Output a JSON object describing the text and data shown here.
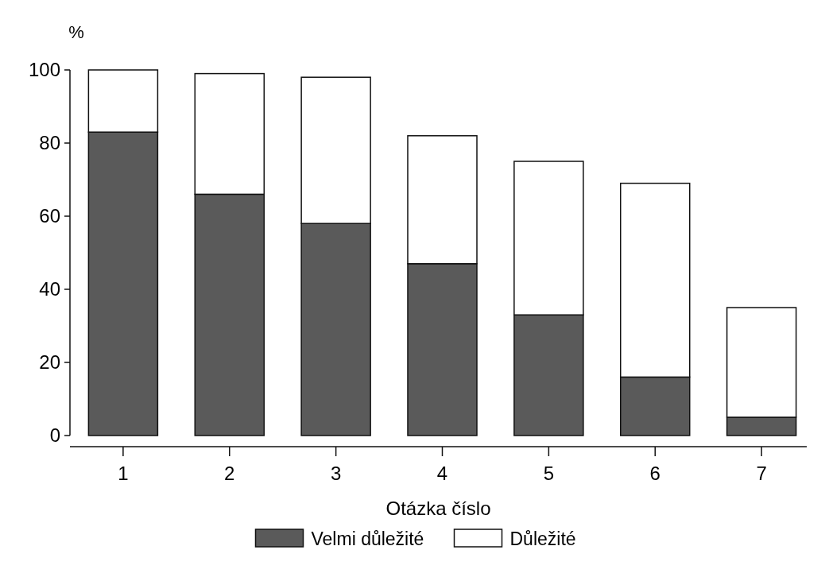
{
  "chart_data": {
    "type": "bar",
    "stacked": true,
    "ylabel": "%",
    "xlabel": "Otázka číslo",
    "categories": [
      "1",
      "2",
      "3",
      "4",
      "5",
      "6",
      "7"
    ],
    "series": [
      {
        "name": "Velmi důležité",
        "color": "#5a5a5a",
        "values": [
          83,
          66,
          58,
          47,
          33,
          16,
          5
        ]
      },
      {
        "name": "Důležité",
        "color": "#ffffff",
        "values": [
          17,
          33,
          40,
          35,
          42,
          53,
          30
        ]
      }
    ],
    "ylim": [
      0,
      100
    ],
    "yticks": [
      0,
      20,
      40,
      60,
      80,
      100
    ],
    "grid": false,
    "legend": "bottom"
  }
}
